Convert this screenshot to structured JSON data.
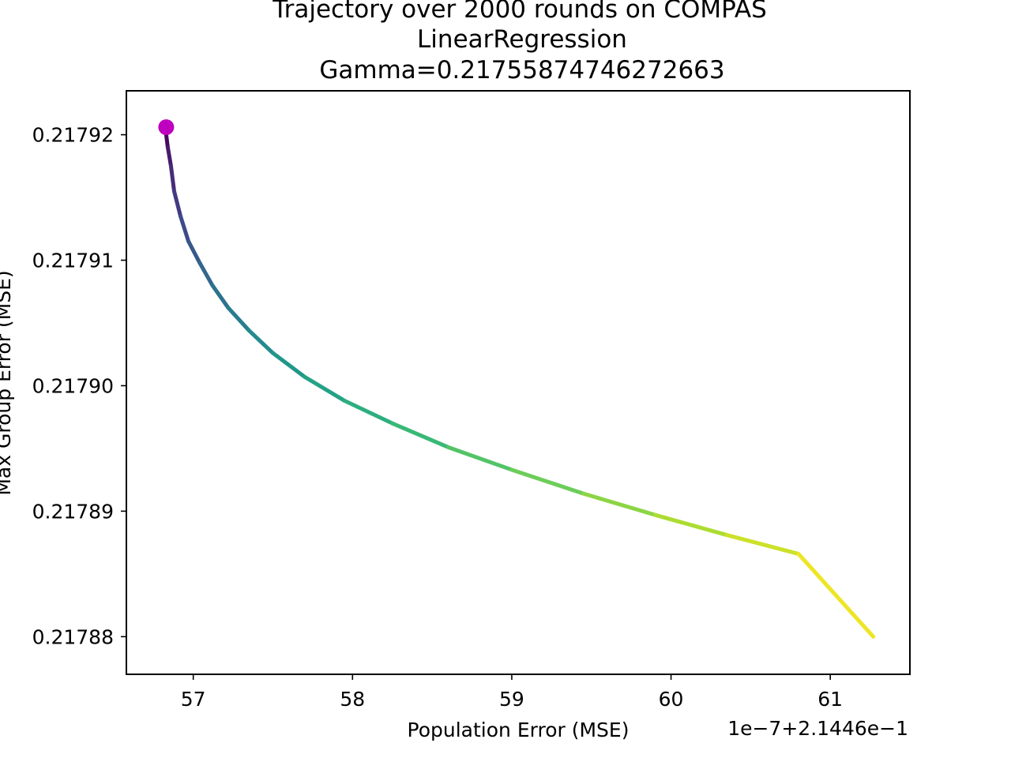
{
  "chart_data": {
    "type": "line",
    "title_lines": [
      "Trajectory over 2000 rounds on COMPAS",
      "LinearRegression",
      "Gamma=0.21755874746272663"
    ],
    "xlabel": "Population Error (MSE)",
    "ylabel": "Max Group Error (MSE)",
    "x_offset_text": "1e−7+2.1446e−1",
    "x_scale": 1e-07,
    "x_offset": 0.21446,
    "xlim": [
      56.58,
      61.5
    ],
    "ylim": [
      0.217877,
      0.2179235
    ],
    "xticks": [
      57,
      58,
      59,
      60,
      61
    ],
    "xtick_labels": [
      "57",
      "58",
      "59",
      "60",
      "61"
    ],
    "yticks": [
      0.21788,
      0.21789,
      0.2179,
      0.21791,
      0.21792
    ],
    "ytick_labels": [
      "0.21788",
      "0.21789",
      "0.21790",
      "0.21791",
      "0.21792"
    ],
    "grid": false,
    "colormap": "viridis",
    "viridis_stops": [
      "#440154",
      "#482878",
      "#3e4989",
      "#31688e",
      "#26828e",
      "#1f9e89",
      "#35b779",
      "#6ece58",
      "#b5de2b",
      "#fde725"
    ],
    "series": [
      {
        "rounds": 2000,
        "x": [
          56.83,
          56.84,
          56.86,
          56.88,
          56.92,
          56.97,
          57.04,
          57.12,
          57.22,
          57.35,
          57.5,
          57.7,
          57.95,
          58.25,
          58.6,
          59.0,
          59.45,
          59.9,
          60.35,
          60.8,
          61.27
        ],
        "y": [
          0.21792,
          0.217919,
          0.2179175,
          0.2179155,
          0.2179135,
          0.2179115,
          0.2179098,
          0.217908,
          0.2179062,
          0.2179044,
          0.2179026,
          0.2179007,
          0.2178988,
          0.217897,
          0.2178951,
          0.2178933,
          0.2178914,
          0.2178897,
          0.2178881,
          0.2178866,
          0.21788
        ]
      }
    ],
    "start_point": {
      "x": 56.83,
      "y": 0.2179206,
      "color": "#bf00bf"
    }
  }
}
